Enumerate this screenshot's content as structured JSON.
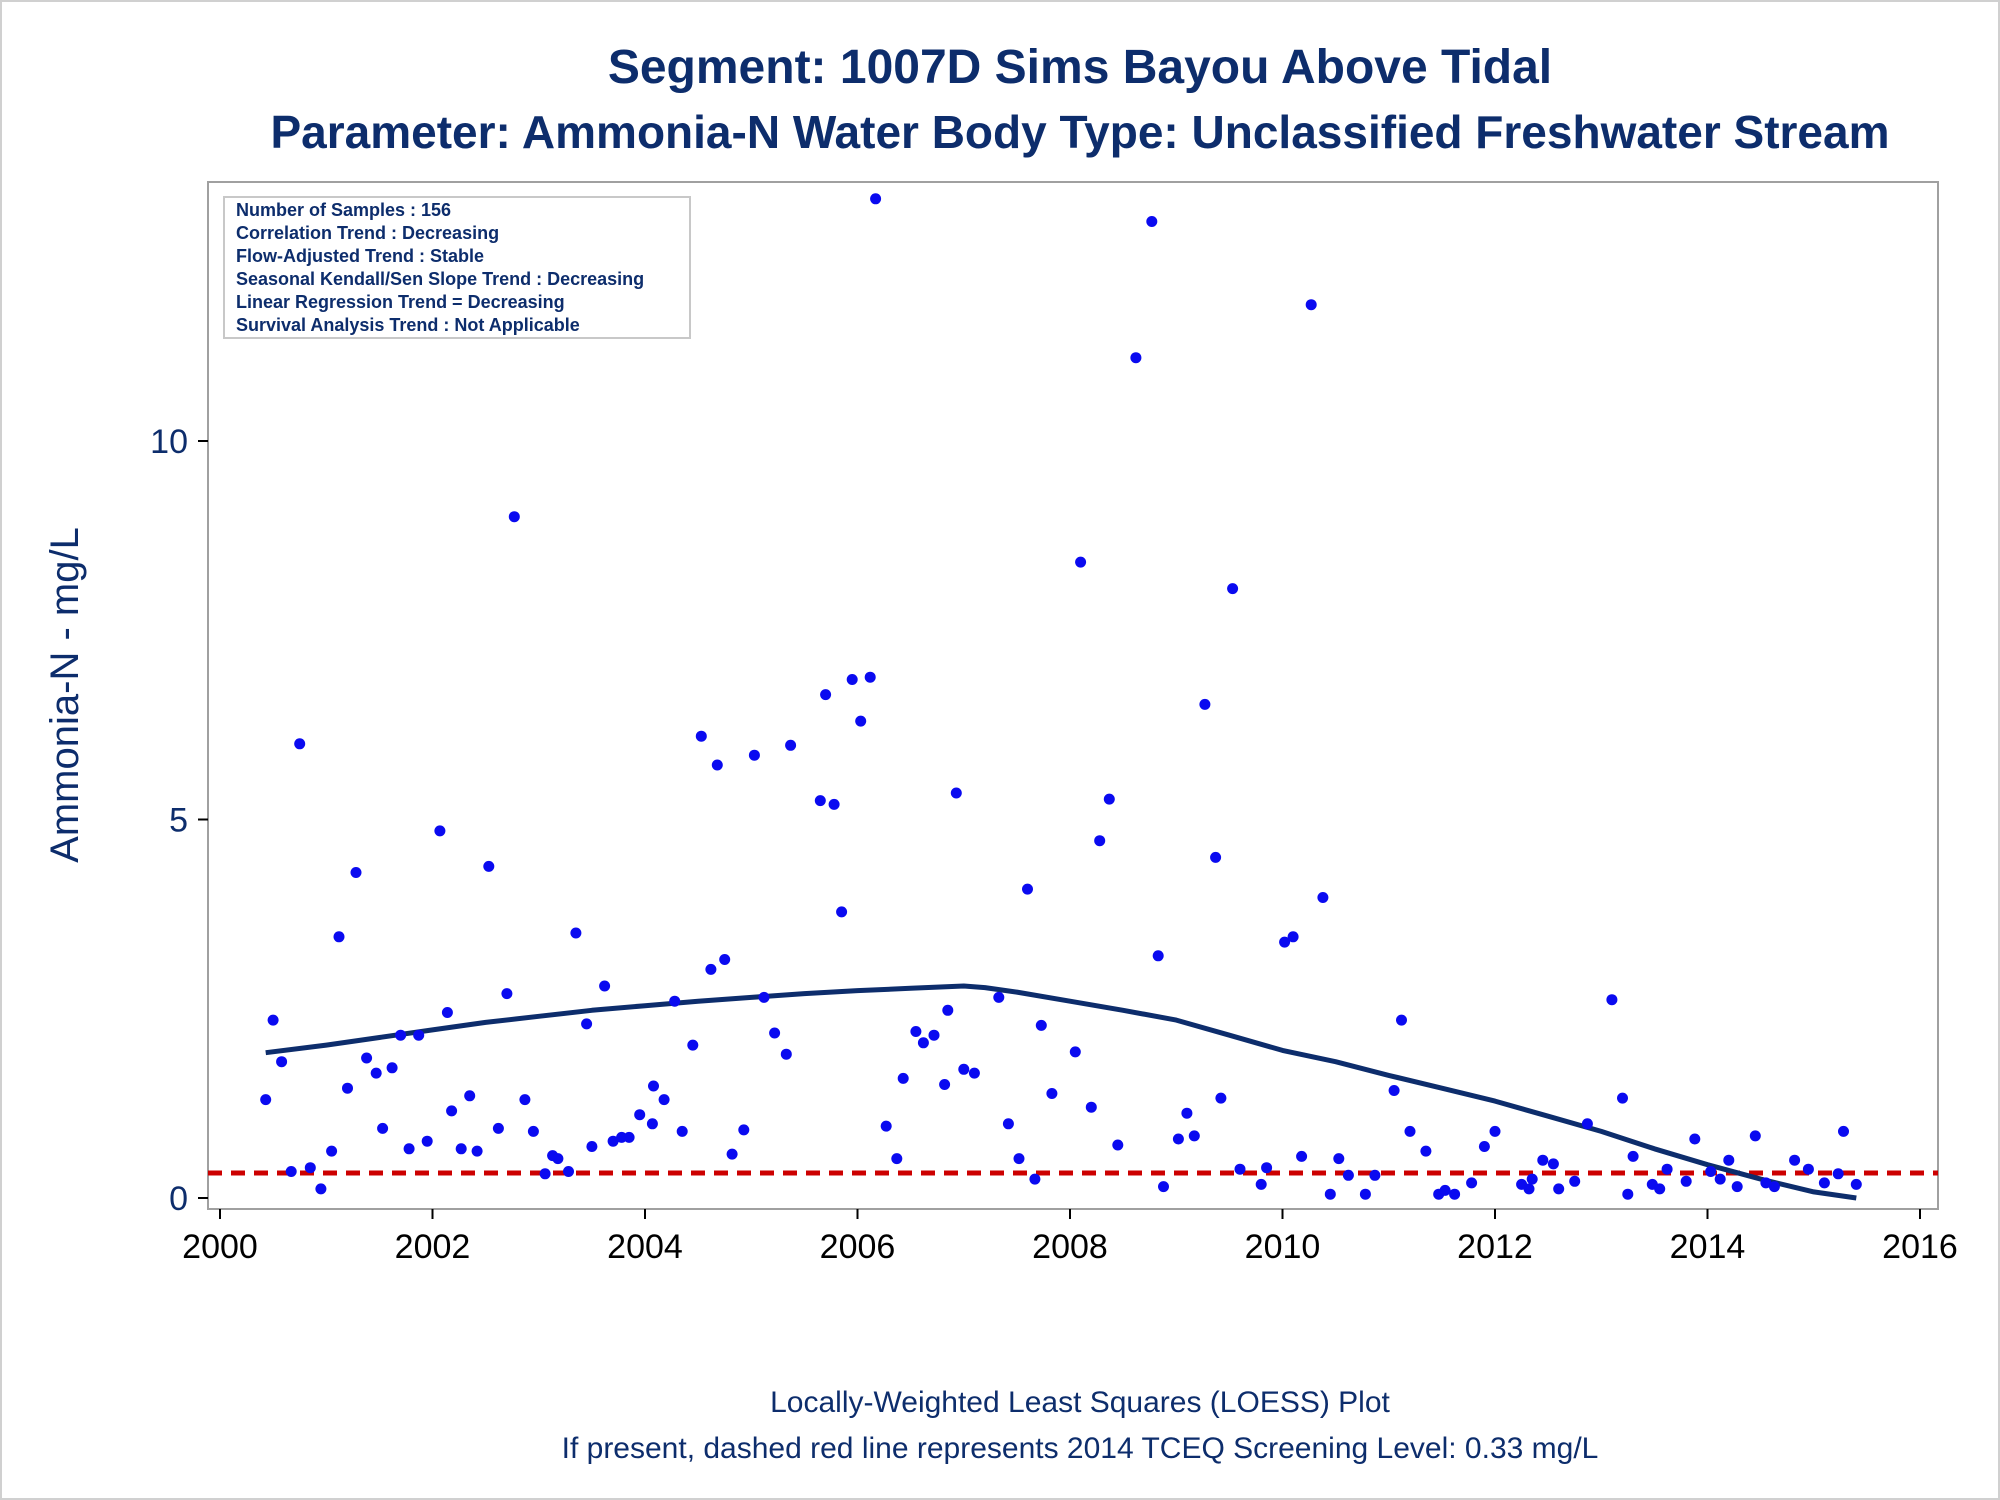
{
  "titles": {
    "line1": "Segment: 1007D  Sims Bayou Above Tidal",
    "line2": "Parameter: Ammonia-N   Water Body Type: Unclassified Freshwater Stream"
  },
  "legend_box": [
    "Number of Samples : 156",
    "Correlation Trend : Decreasing",
    "Flow-Adjusted Trend : Stable",
    "Seasonal Kendall/Sen Slope Trend : Decreasing",
    "Linear Regression Trend = Decreasing",
    "Survival Analysis Trend : Not Applicable"
  ],
  "footnotes": {
    "line1": "Locally-Weighted Least Squares (LOESS) Plot",
    "line2": "If present, dashed red line represents 2014 TCEQ Screening Level: 0.33 mg/L"
  },
  "colors": {
    "points": "#0a0af0",
    "loess": "#0d2d6c",
    "screening": "#cc0000",
    "text": "#0d2d6c"
  },
  "chart_data": {
    "type": "scatter",
    "title": "Segment: 1007D  Sims Bayou Above Tidal",
    "subtitle": "Parameter: Ammonia-N   Water Body Type: Unclassified Freshwater Stream",
    "xlabel": "",
    "ylabel": "Ammonia-N - mg/L",
    "xlim": [
      2000,
      2016
    ],
    "ylim": [
      0,
      13.4
    ],
    "x_ticks": [
      2000,
      2002,
      2004,
      2006,
      2008,
      2010,
      2012,
      2014,
      2016
    ],
    "y_ticks": [
      0,
      5,
      10
    ],
    "grid": false,
    "reference_line": {
      "y": 0.33,
      "style": "dashed"
    },
    "points": [
      [
        2000.43,
        1.3
      ],
      [
        2000.5,
        2.35
      ],
      [
        2000.58,
        1.8
      ],
      [
        2000.67,
        0.35
      ],
      [
        2000.75,
        6.0
      ],
      [
        2000.85,
        0.4
      ],
      [
        2000.95,
        0.12
      ],
      [
        2001.05,
        0.62
      ],
      [
        2001.12,
        3.45
      ],
      [
        2001.2,
        1.45
      ],
      [
        2001.28,
        4.3
      ],
      [
        2001.38,
        1.85
      ],
      [
        2001.47,
        1.65
      ],
      [
        2001.53,
        0.92
      ],
      [
        2001.62,
        1.72
      ],
      [
        2001.7,
        2.15
      ],
      [
        2001.78,
        0.65
      ],
      [
        2001.87,
        2.15
      ],
      [
        2001.95,
        0.75
      ],
      [
        2002.07,
        4.85
      ],
      [
        2002.14,
        2.45
      ],
      [
        2002.18,
        1.15
      ],
      [
        2002.27,
        0.65
      ],
      [
        2002.35,
        1.35
      ],
      [
        2002.42,
        0.62
      ],
      [
        2002.53,
        4.38
      ],
      [
        2002.62,
        0.92
      ],
      [
        2002.7,
        2.7
      ],
      [
        2002.77,
        9.0
      ],
      [
        2002.87,
        1.3
      ],
      [
        2002.95,
        0.88
      ],
      [
        2003.06,
        0.32
      ],
      [
        2003.13,
        0.56
      ],
      [
        2003.18,
        0.52
      ],
      [
        2003.28,
        0.35
      ],
      [
        2003.35,
        3.5
      ],
      [
        2003.45,
        2.3
      ],
      [
        2003.5,
        0.68
      ],
      [
        2003.62,
        2.8
      ],
      [
        2003.7,
        0.75
      ],
      [
        2003.78,
        0.8
      ],
      [
        2003.85,
        0.8
      ],
      [
        2003.95,
        1.1
      ],
      [
        2004.07,
        0.98
      ],
      [
        2004.08,
        1.48
      ],
      [
        2004.18,
        1.3
      ],
      [
        2004.28,
        2.6
      ],
      [
        2004.35,
        0.88
      ],
      [
        2004.45,
        2.02
      ],
      [
        2004.53,
        6.1
      ],
      [
        2004.62,
        3.02
      ],
      [
        2004.68,
        5.72
      ],
      [
        2004.75,
        3.15
      ],
      [
        2004.82,
        0.58
      ],
      [
        2004.93,
        0.9
      ],
      [
        2005.03,
        5.85
      ],
      [
        2005.12,
        2.65
      ],
      [
        2005.22,
        2.18
      ],
      [
        2005.33,
        1.9
      ],
      [
        2005.37,
        5.98
      ],
      [
        2005.65,
        5.25
      ],
      [
        2005.7,
        6.65
      ],
      [
        2005.78,
        5.2
      ],
      [
        2005.85,
        3.78
      ],
      [
        2005.95,
        6.85
      ],
      [
        2006.03,
        6.3
      ],
      [
        2006.12,
        6.88
      ],
      [
        2006.17,
        13.2
      ],
      [
        2006.27,
        0.95
      ],
      [
        2006.37,
        0.52
      ],
      [
        2006.43,
        1.58
      ],
      [
        2006.55,
        2.2
      ],
      [
        2006.62,
        2.05
      ],
      [
        2006.72,
        2.15
      ],
      [
        2006.82,
        1.5
      ],
      [
        2006.85,
        2.48
      ],
      [
        2006.93,
        5.35
      ],
      [
        2007.0,
        1.7
      ],
      [
        2007.1,
        1.65
      ],
      [
        2007.33,
        2.65
      ],
      [
        2007.42,
        0.98
      ],
      [
        2007.52,
        0.52
      ],
      [
        2007.6,
        4.08
      ],
      [
        2007.67,
        0.25
      ],
      [
        2007.73,
        2.28
      ],
      [
        2007.83,
        1.38
      ],
      [
        2008.05,
        1.93
      ],
      [
        2008.1,
        8.4
      ],
      [
        2008.2,
        1.2
      ],
      [
        2008.28,
        4.72
      ],
      [
        2008.37,
        5.27
      ],
      [
        2008.45,
        0.7
      ],
      [
        2008.62,
        11.1
      ],
      [
        2008.77,
        12.9
      ],
      [
        2008.83,
        3.2
      ],
      [
        2008.88,
        0.15
      ],
      [
        2009.02,
        0.78
      ],
      [
        2009.1,
        1.12
      ],
      [
        2009.17,
        0.82
      ],
      [
        2009.27,
        6.52
      ],
      [
        2009.37,
        4.5
      ],
      [
        2009.42,
        1.32
      ],
      [
        2009.53,
        8.05
      ],
      [
        2009.6,
        0.38
      ],
      [
        2009.8,
        0.18
      ],
      [
        2009.85,
        0.4
      ],
      [
        2010.02,
        3.38
      ],
      [
        2010.1,
        3.45
      ],
      [
        2010.18,
        0.55
      ],
      [
        2010.27,
        11.8
      ],
      [
        2010.38,
        3.97
      ],
      [
        2010.45,
        0.05
      ],
      [
        2010.53,
        0.52
      ],
      [
        2010.62,
        0.3
      ],
      [
        2010.78,
        0.05
      ],
      [
        2010.87,
        0.3
      ],
      [
        2011.05,
        1.42
      ],
      [
        2011.12,
        2.35
      ],
      [
        2011.2,
        0.88
      ],
      [
        2011.35,
        0.62
      ],
      [
        2011.47,
        0.05
      ],
      [
        2011.53,
        0.1
      ],
      [
        2011.62,
        0.05
      ],
      [
        2011.78,
        0.2
      ],
      [
        2011.9,
        0.68
      ],
      [
        2012.0,
        0.88
      ],
      [
        2012.25,
        0.18
      ],
      [
        2012.32,
        0.12
      ],
      [
        2012.35,
        0.25
      ],
      [
        2012.45,
        0.5
      ],
      [
        2012.55,
        0.45
      ],
      [
        2012.6,
        0.12
      ],
      [
        2012.75,
        0.22
      ],
      [
        2012.87,
        0.98
      ],
      [
        2013.1,
        2.62
      ],
      [
        2013.2,
        1.32
      ],
      [
        2013.25,
        0.05
      ],
      [
        2013.3,
        0.55
      ],
      [
        2013.48,
        0.18
      ],
      [
        2013.55,
        0.12
      ],
      [
        2013.62,
        0.38
      ],
      [
        2013.8,
        0.22
      ],
      [
        2013.88,
        0.78
      ],
      [
        2014.03,
        0.35
      ],
      [
        2014.12,
        0.25
      ],
      [
        2014.2,
        0.5
      ],
      [
        2014.28,
        0.15
      ],
      [
        2014.45,
        0.82
      ],
      [
        2014.55,
        0.2
      ],
      [
        2014.63,
        0.15
      ],
      [
        2014.82,
        0.5
      ],
      [
        2014.95,
        0.38
      ],
      [
        2015.1,
        0.2
      ],
      [
        2015.23,
        0.32
      ],
      [
        2015.28,
        0.88
      ],
      [
        2015.4,
        0.18
      ]
    ],
    "loess_curve": [
      [
        2000.43,
        1.92
      ],
      [
        2001.0,
        2.02
      ],
      [
        2001.5,
        2.12
      ],
      [
        2002.0,
        2.22
      ],
      [
        2002.5,
        2.32
      ],
      [
        2003.0,
        2.4
      ],
      [
        2003.5,
        2.48
      ],
      [
        2004.0,
        2.54
      ],
      [
        2004.5,
        2.6
      ],
      [
        2005.0,
        2.65
      ],
      [
        2005.5,
        2.7
      ],
      [
        2006.0,
        2.74
      ],
      [
        2006.5,
        2.77
      ],
      [
        2007.0,
        2.8
      ],
      [
        2007.2,
        2.78
      ],
      [
        2007.5,
        2.72
      ],
      [
        2008.0,
        2.6
      ],
      [
        2008.5,
        2.48
      ],
      [
        2009.0,
        2.35
      ],
      [
        2009.5,
        2.15
      ],
      [
        2010.0,
        1.95
      ],
      [
        2010.5,
        1.8
      ],
      [
        2011.0,
        1.62
      ],
      [
        2011.5,
        1.45
      ],
      [
        2012.0,
        1.28
      ],
      [
        2012.5,
        1.08
      ],
      [
        2013.0,
        0.88
      ],
      [
        2013.5,
        0.65
      ],
      [
        2014.0,
        0.44
      ],
      [
        2014.5,
        0.25
      ],
      [
        2015.0,
        0.08
      ],
      [
        2015.4,
        0.0
      ]
    ]
  }
}
